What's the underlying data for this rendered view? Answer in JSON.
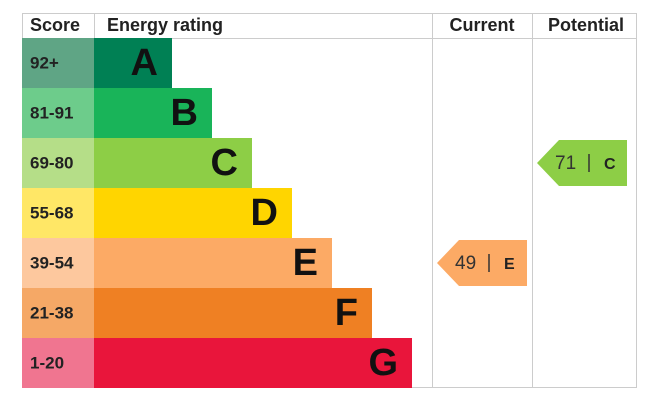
{
  "header": {
    "score": "Score",
    "rating": "Energy rating",
    "current": "Current",
    "potential": "Potential"
  },
  "bands": [
    {
      "score": "92+",
      "letter": "A",
      "color": "#008054",
      "score_color": "#5fa585"
    },
    {
      "score": "81-91",
      "letter": "B",
      "color": "#19b459",
      "score_color": "#6dcc8b"
    },
    {
      "score": "69-80",
      "letter": "C",
      "color": "#8dce46",
      "score_color": "#b5de88"
    },
    {
      "score": "55-68",
      "letter": "D",
      "color": "#ffd500",
      "score_color": "#ffe766"
    },
    {
      "score": "39-54",
      "letter": "E",
      "color": "#fcaa65",
      "score_color": "#fdc89e"
    },
    {
      "score": "21-38",
      "letter": "F",
      "color": "#ef8023",
      "score_color": "#f5a866"
    },
    {
      "score": "1-20",
      "letter": "G",
      "color": "#e9153b",
      "score_color": "#f07590"
    }
  ],
  "current": {
    "value": 49,
    "letter": "E"
  },
  "potential": {
    "value": 71,
    "letter": "C"
  }
}
